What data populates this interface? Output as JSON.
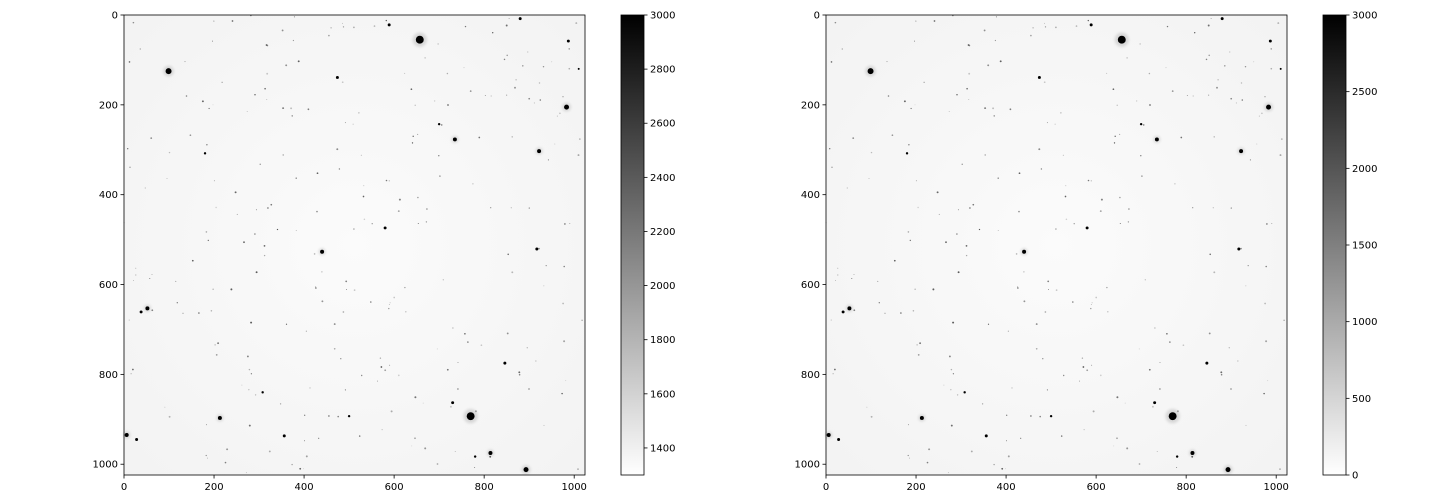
{
  "chart_data": [
    {
      "type": "heatmap",
      "description_colormap": "Greys",
      "xlim": [
        0,
        1024
      ],
      "ylim": [
        1024,
        0
      ],
      "x_ticks": [
        0,
        200,
        400,
        600,
        800,
        1000
      ],
      "y_ticks": [
        0,
        200,
        400,
        600,
        800,
        1000
      ],
      "colorbar": {
        "min": 1300,
        "max": 3000,
        "ticks": [
          1400,
          1600,
          1800,
          2000,
          2200,
          2400,
          2600,
          2800,
          3000
        ]
      },
      "stars": [
        {
          "x": 657,
          "y": 55,
          "r": 4
        },
        {
          "x": 99,
          "y": 125,
          "r": 3
        },
        {
          "x": 983,
          "y": 205,
          "r": 2.5
        },
        {
          "x": 735,
          "y": 277,
          "r": 2
        },
        {
          "x": 922,
          "y": 303,
          "r": 2
        },
        {
          "x": 440,
          "y": 527,
          "r": 2
        },
        {
          "x": 917,
          "y": 521,
          "r": 1.5
        },
        {
          "x": 52,
          "y": 653,
          "r": 2
        },
        {
          "x": 38,
          "y": 661,
          "r": 1.5
        },
        {
          "x": 770,
          "y": 893,
          "r": 4
        },
        {
          "x": 213,
          "y": 897,
          "r": 2
        },
        {
          "x": 356,
          "y": 937,
          "r": 1.5
        },
        {
          "x": 814,
          "y": 975,
          "r": 2
        },
        {
          "x": 893,
          "y": 1012,
          "r": 2.5
        },
        {
          "x": 6,
          "y": 935,
          "r": 2
        },
        {
          "x": 28,
          "y": 945,
          "r": 1.5
        },
        {
          "x": 589,
          "y": 22,
          "r": 1.5
        },
        {
          "x": 880,
          "y": 8,
          "r": 1.5
        },
        {
          "x": 474,
          "y": 139,
          "r": 1.5
        },
        {
          "x": 580,
          "y": 474,
          "r": 1.5
        },
        {
          "x": 730,
          "y": 863,
          "r": 1.5
        },
        {
          "x": 846,
          "y": 775,
          "r": 1.5
        },
        {
          "x": 987,
          "y": 58,
          "r": 1.5
        },
        {
          "x": 1010,
          "y": 120,
          "r": 1
        },
        {
          "x": 308,
          "y": 840,
          "r": 1.2
        },
        {
          "x": 500,
          "y": 893,
          "r": 1.2
        },
        {
          "x": 180,
          "y": 308,
          "r": 1.2
        },
        {
          "x": 700,
          "y": 243,
          "r": 1.2
        },
        {
          "x": 780,
          "y": 983,
          "r": 1.2
        }
      ]
    },
    {
      "type": "heatmap",
      "description_colormap": "Greys",
      "xlim": [
        0,
        1024
      ],
      "ylim": [
        1024,
        0
      ],
      "x_ticks": [
        0,
        200,
        400,
        600,
        800,
        1000
      ],
      "y_ticks": [
        0,
        200,
        400,
        600,
        800,
        1000
      ],
      "colorbar": {
        "min": 0,
        "max": 3000,
        "ticks": [
          0,
          500,
          1000,
          1500,
          2000,
          2500,
          3000
        ]
      },
      "stars": [
        {
          "x": 657,
          "y": 55,
          "r": 4
        },
        {
          "x": 99,
          "y": 125,
          "r": 3
        },
        {
          "x": 983,
          "y": 205,
          "r": 2.5
        },
        {
          "x": 735,
          "y": 277,
          "r": 2
        },
        {
          "x": 922,
          "y": 303,
          "r": 2
        },
        {
          "x": 440,
          "y": 527,
          "r": 2
        },
        {
          "x": 917,
          "y": 521,
          "r": 1.5
        },
        {
          "x": 52,
          "y": 653,
          "r": 2
        },
        {
          "x": 38,
          "y": 661,
          "r": 1.5
        },
        {
          "x": 770,
          "y": 893,
          "r": 4
        },
        {
          "x": 213,
          "y": 897,
          "r": 2
        },
        {
          "x": 356,
          "y": 937,
          "r": 1.5
        },
        {
          "x": 814,
          "y": 975,
          "r": 2
        },
        {
          "x": 893,
          "y": 1012,
          "r": 2.5
        },
        {
          "x": 6,
          "y": 935,
          "r": 2
        },
        {
          "x": 28,
          "y": 945,
          "r": 1.5
        },
        {
          "x": 589,
          "y": 22,
          "r": 1.5
        },
        {
          "x": 880,
          "y": 8,
          "r": 1.5
        },
        {
          "x": 474,
          "y": 139,
          "r": 1.5
        },
        {
          "x": 580,
          "y": 474,
          "r": 1.5
        },
        {
          "x": 730,
          "y": 863,
          "r": 1.5
        },
        {
          "x": 846,
          "y": 775,
          "r": 1.5
        },
        {
          "x": 987,
          "y": 58,
          "r": 1.5
        },
        {
          "x": 1010,
          "y": 120,
          "r": 1
        },
        {
          "x": 308,
          "y": 840,
          "r": 1.2
        },
        {
          "x": 500,
          "y": 893,
          "r": 1.2
        },
        {
          "x": 180,
          "y": 308,
          "r": 1.2
        },
        {
          "x": 700,
          "y": 243,
          "r": 1.2
        },
        {
          "x": 780,
          "y": 983,
          "r": 1.2
        }
      ]
    }
  ]
}
